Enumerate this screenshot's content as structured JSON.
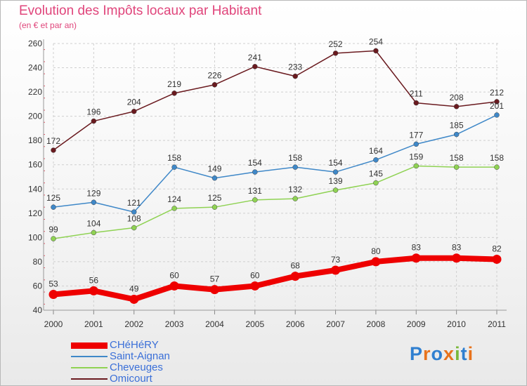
{
  "title": "Evolution des Impôts locaux par Habitant",
  "subtitle": "(en € et par an)",
  "logo": {
    "text": "Proxiti",
    "colors": [
      "#2f7fd0",
      "#e8731c",
      "#2f7fd0",
      "#e8731c",
      "#7ab83b",
      "#2f7fd0",
      "#e8731c"
    ]
  },
  "chart_data": {
    "type": "line",
    "x": [
      "2000",
      "2001",
      "2002",
      "2003",
      "2004",
      "2005",
      "2006",
      "2007",
      "2008",
      "2009",
      "2010",
      "2011"
    ],
    "ylim": [
      40,
      260
    ],
    "yticks": [
      "40",
      "60",
      "80",
      "100",
      "120",
      "140",
      "160",
      "180",
      "200",
      "220",
      "240",
      "260"
    ],
    "grid": true,
    "legend_position": "bottom-left",
    "series": [
      {
        "name": "CHéHéRY",
        "color": "#ee0000",
        "values": [
          53,
          56,
          49,
          60,
          57,
          60,
          68,
          73,
          80,
          83,
          83,
          82
        ],
        "labels": [
          "53",
          "56",
          "49",
          "60",
          "57",
          "60",
          "68",
          "73",
          "80",
          "83",
          "83",
          "82"
        ]
      },
      {
        "name": "Saint-Aignan",
        "color": "#3f88c8",
        "values": [
          125,
          129,
          121,
          158,
          149,
          154,
          158,
          154,
          164,
          177,
          185,
          201
        ],
        "labels": [
          "125",
          "129",
          "121",
          "158",
          "149",
          "154",
          "158",
          "154",
          "164",
          "177",
          "185",
          "201"
        ]
      },
      {
        "name": "Cheveuges",
        "color": "#8fd253",
        "values": [
          99,
          104,
          108,
          124,
          125,
          131,
          132,
          139,
          145,
          159,
          158,
          158
        ],
        "labels": [
          "99",
          "104",
          "108",
          "124",
          "125",
          "131",
          "132",
          "139",
          "145",
          "159",
          "158",
          "158"
        ]
      },
      {
        "name": "Omicourt",
        "color": "#6a1a1f",
        "values": [
          172,
          196,
          204,
          219,
          226,
          241,
          233,
          252,
          254,
          211,
          208,
          212
        ],
        "labels": [
          "172",
          "196",
          "204",
          "219",
          "226",
          "241",
          "233",
          "252",
          "254",
          "211",
          "208",
          "212"
        ]
      }
    ]
  }
}
